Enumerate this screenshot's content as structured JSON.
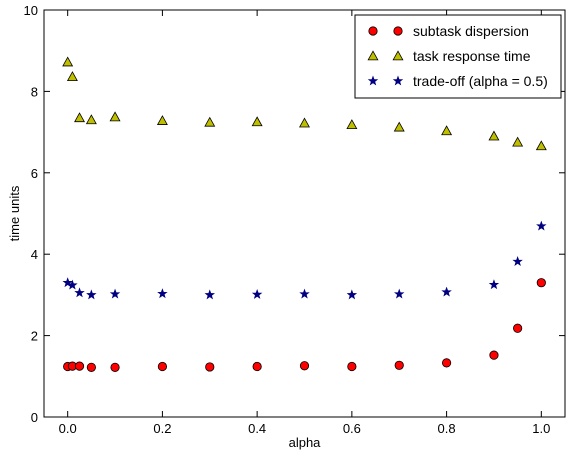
{
  "chart_data": {
    "type": "scatter",
    "title": "",
    "xlabel": "alpha",
    "ylabel": "time units",
    "xlim": [
      -0.05,
      1.05
    ],
    "ylim": [
      0,
      10
    ],
    "xticks": [
      "0.0",
      "0.2",
      "0.4",
      "0.6",
      "0.8",
      "1.0"
    ],
    "yticks": [
      "0",
      "2",
      "4",
      "6",
      "8",
      "10"
    ],
    "grid": false,
    "legend_position": "top-right",
    "series": [
      {
        "name": "task response time",
        "marker": "triangle",
        "color": "#bfbf00",
        "x": [
          0.0,
          0.01,
          0.025,
          0.05,
          0.1,
          0.2,
          0.3,
          0.4,
          0.5,
          0.6,
          0.7,
          0.8,
          0.9,
          0.95,
          1.0
        ],
        "y": [
          8.72,
          8.36,
          7.35,
          7.3,
          7.37,
          7.28,
          7.24,
          7.25,
          7.22,
          7.18,
          7.12,
          7.03,
          6.9,
          6.75,
          6.66
        ]
      },
      {
        "name": "trade-off (alpha = 0.5)",
        "marker": "star",
        "color": "#000080",
        "x": [
          0.0,
          0.01,
          0.025,
          0.05,
          0.1,
          0.2,
          0.3,
          0.4,
          0.5,
          0.6,
          0.7,
          0.8,
          0.9,
          0.95,
          1.0
        ],
        "y": [
          3.3,
          3.24,
          3.05,
          3.0,
          3.02,
          3.03,
          3.0,
          3.01,
          3.02,
          3.0,
          3.02,
          3.07,
          3.25,
          3.82,
          4.69
        ]
      },
      {
        "name": "subtask dispersion",
        "marker": "circle",
        "color": "#ff0000",
        "x": [
          0.0,
          0.01,
          0.025,
          0.05,
          0.1,
          0.2,
          0.3,
          0.4,
          0.5,
          0.6,
          0.7,
          0.8,
          0.9,
          0.95,
          1.0
        ],
        "y": [
          1.24,
          1.25,
          1.25,
          1.22,
          1.22,
          1.24,
          1.23,
          1.24,
          1.26,
          1.24,
          1.27,
          1.33,
          1.52,
          2.18,
          3.3
        ]
      }
    ],
    "legend_order": [
      "subtask dispersion",
      "task response time",
      "trade-off (alpha = 0.5)"
    ]
  }
}
